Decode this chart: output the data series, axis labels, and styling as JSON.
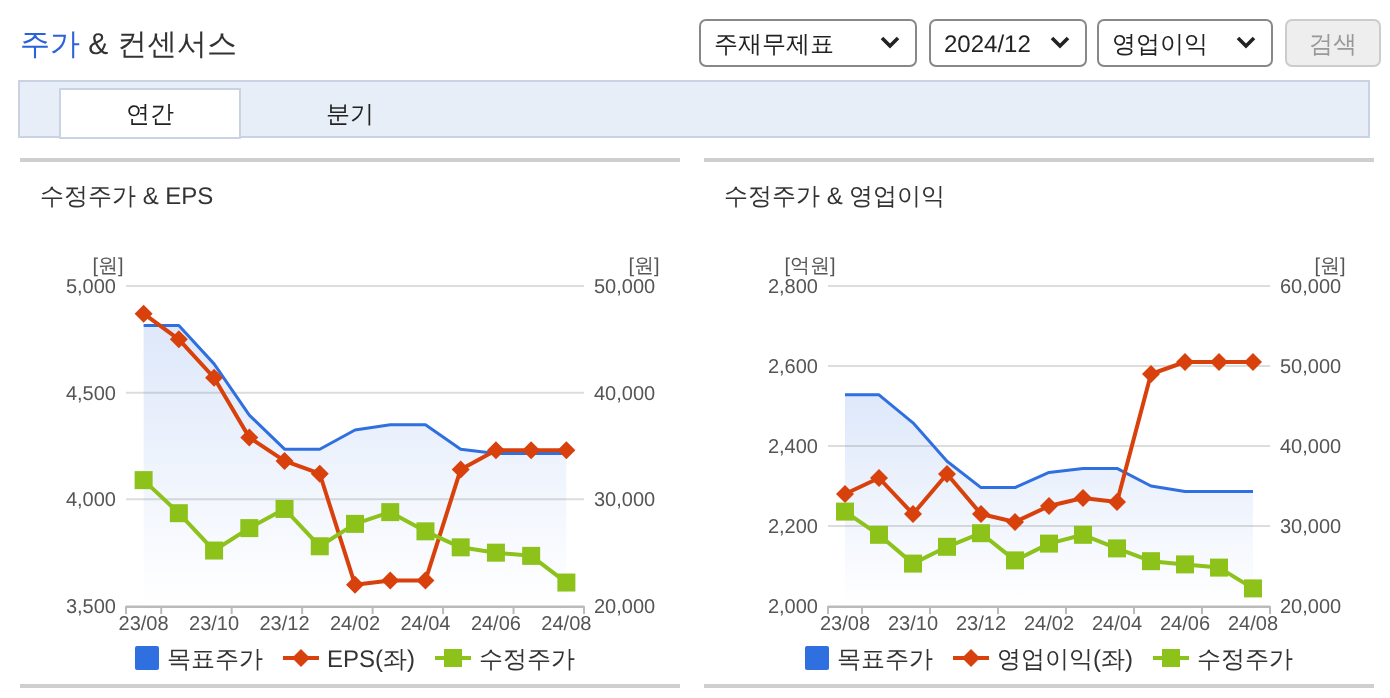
{
  "chart_data": [
    {
      "type": "line",
      "title": "수정주가 & EPS",
      "ylabel": "[원]",
      "y2label": "[원]",
      "annotations": [
        "주가 & 컨센서스",
        "주재무제표",
        "2024/12",
        "영업이익",
        "검색",
        "연간",
        "분기"
      ],
      "categories": [
        "23/08",
        null,
        "23/10",
        null,
        "23/12",
        null,
        "24/02",
        null,
        "24/04",
        null,
        "24/06",
        null,
        "24/08"
      ],
      "ylim": [
        3500,
        5000
      ],
      "yticks": [
        {
          "value": 3500,
          "label": "3,500"
        },
        {
          "value": 4000,
          "label": "4,000"
        },
        {
          "value": 4500,
          "label": "4,500"
        },
        {
          "value": 5000,
          "label": "5,000"
        }
      ],
      "y2lim": [
        20000,
        50000
      ],
      "y2ticks": [
        {
          "value": 20000,
          "label": "20,000"
        },
        {
          "value": 30000,
          "label": "30,000"
        },
        {
          "value": 40000,
          "label": "40,000"
        },
        {
          "value": 50000,
          "label": "50,000"
        }
      ],
      "grid": "y",
      "legend": "bottom",
      "series": [
        {
          "name": "목표주가",
          "type": "area",
          "axis": "y2",
          "color": "#2f6fe0",
          "values": [
            46300,
            46300,
            42700,
            37900,
            34700,
            34700,
            36500,
            37000,
            37000,
            34700,
            34300,
            34300,
            34300
          ]
        },
        {
          "name": "EPS(좌)",
          "color": "#d8400c",
          "marker": "diamond",
          "values": [
            4870,
            4750,
            4570,
            4290,
            4180,
            4120,
            3600,
            3620,
            3620,
            4140,
            4230,
            4230,
            4230
          ]
        },
        {
          "name": "수정주가",
          "axis": "y2",
          "color": "#8cc21a",
          "marker": "square",
          "values": [
            31800,
            28700,
            25200,
            27300,
            29100,
            25600,
            27700,
            28800,
            27000,
            25500,
            25000,
            24700,
            22200
          ]
        }
      ]
    },
    {
      "type": "line",
      "title": "수정주가 & 영업이익",
      "ylabel": "[억원]",
      "y2label": "[원]",
      "categories": [
        "23/08",
        null,
        "23/10",
        null,
        "23/12",
        null,
        "24/02",
        null,
        "24/04",
        null,
        "24/06",
        null,
        "24/08"
      ],
      "ylim": [
        2000,
        2800
      ],
      "yticks": [
        {
          "value": 2000,
          "label": "2,000"
        },
        {
          "value": 2200,
          "label": "2,200"
        },
        {
          "value": 2400,
          "label": "2,400"
        },
        {
          "value": 2600,
          "label": "2,600"
        },
        {
          "value": 2800,
          "label": "2,800"
        }
      ],
      "y2lim": [
        20000,
        60000
      ],
      "y2ticks": [
        {
          "value": 20000,
          "label": "20,000"
        },
        {
          "value": 30000,
          "label": "30,000"
        },
        {
          "value": 40000,
          "label": "40,000"
        },
        {
          "value": 50000,
          "label": "50,000"
        },
        {
          "value": 60000,
          "label": "60,000"
        }
      ],
      "grid": "y",
      "legend": "bottom",
      "series": [
        {
          "name": "목표주가",
          "type": "area",
          "axis": "y2",
          "color": "#2f6fe0",
          "values": [
            46400,
            46400,
            42900,
            38100,
            34800,
            34800,
            36700,
            37200,
            37200,
            35000,
            34300,
            34300,
            34300
          ]
        },
        {
          "name": "영업이익(좌)",
          "color": "#d8400c",
          "marker": "diamond",
          "values": [
            2280,
            2320,
            2230,
            2330,
            2230,
            2210,
            2250,
            2270,
            2260,
            2580,
            2610,
            2610,
            2610
          ]
        },
        {
          "name": "수정주가",
          "axis": "y2",
          "color": "#8cc21a",
          "marker": "square",
          "values": [
            31800,
            28900,
            25300,
            27400,
            29100,
            25700,
            27800,
            28900,
            27200,
            25600,
            25200,
            24800,
            22200
          ]
        }
      ]
    }
  ]
}
